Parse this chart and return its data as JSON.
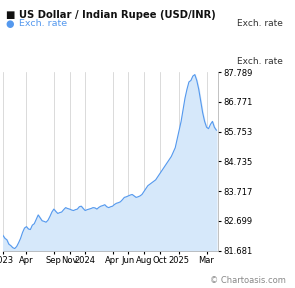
{
  "title": "US Dollar / Indian Rupee (USD/INR)",
  "legend_label": "Exch. rate",
  "legend_color": "#5599ee",
  "ylabel": "Exch. rate",
  "watermark": "© Chartoasis.com",
  "yticks": [
    81.681,
    82.699,
    83.717,
    84.735,
    85.753,
    86.771,
    87.789
  ],
  "xtick_labels": [
    "2023",
    "Apr",
    "Sep",
    "Nov",
    "2024",
    "Apr",
    "Jun",
    "Aug",
    "Oct",
    "2025",
    "Mar"
  ],
  "xtick_positions": [
    0,
    6,
    13,
    17,
    21,
    28,
    32,
    36,
    40,
    45,
    52
  ],
  "ylim": [
    81.681,
    87.789
  ],
  "xlim": [
    0,
    55
  ],
  "line_color": "#5599ee",
  "fill_color": "#d6e8fa",
  "background_color": "#ffffff",
  "plot_bg_color": "#ffffff",
  "grid_color": "#cccccc",
  "x_data": [
    0,
    0.5,
    1,
    1.5,
    2,
    2.5,
    3,
    3.5,
    4,
    4.5,
    5,
    5.5,
    6,
    6.5,
    7,
    7.5,
    8,
    8.5,
    9,
    9.5,
    10,
    10.5,
    11,
    11.5,
    12,
    12.5,
    13,
    13.5,
    14,
    14.5,
    15,
    15.5,
    16,
    16.5,
    17,
    17.5,
    18,
    18.5,
    19,
    19.5,
    20,
    20.5,
    21,
    21.5,
    22,
    22.5,
    23,
    23.5,
    24,
    24.5,
    25,
    25.5,
    26,
    26.5,
    27,
    27.5,
    28,
    28.5,
    29,
    29.5,
    30,
    30.5,
    31,
    31.5,
    32,
    32.5,
    33,
    33.5,
    34,
    34.5,
    35,
    35.5,
    36,
    36.5,
    37,
    37.5,
    38,
    38.5,
    39,
    39.5,
    40,
    40.5,
    41,
    41.5,
    42,
    42.5,
    43,
    43.5,
    44,
    44.5,
    45,
    45.5,
    46,
    46.5,
    47,
    47.5,
    48,
    48.5,
    49,
    49.5,
    50,
    50.5,
    51,
    51.5,
    52,
    52.5,
    53,
    53.5,
    54,
    54.5
  ],
  "y_data": [
    82.2,
    82.1,
    82.05,
    81.9,
    81.85,
    81.78,
    81.75,
    81.82,
    81.95,
    82.1,
    82.3,
    82.45,
    82.5,
    82.42,
    82.4,
    82.55,
    82.6,
    82.75,
    82.9,
    82.8,
    82.7,
    82.68,
    82.65,
    82.72,
    82.85,
    83.0,
    83.1,
    83.02,
    82.95,
    82.98,
    83.0,
    83.08,
    83.15,
    83.12,
    83.1,
    83.07,
    83.05,
    83.08,
    83.1,
    83.18,
    83.2,
    83.12,
    83.05,
    83.08,
    83.1,
    83.12,
    83.15,
    83.14,
    83.1,
    83.16,
    83.2,
    83.22,
    83.25,
    83.18,
    83.15,
    83.18,
    83.2,
    83.26,
    83.3,
    83.32,
    83.35,
    83.42,
    83.5,
    83.52,
    83.55,
    83.58,
    83.6,
    83.55,
    83.5,
    83.52,
    83.55,
    83.6,
    83.7,
    83.8,
    83.9,
    83.95,
    84.0,
    84.05,
    84.1,
    84.2,
    84.3,
    84.4,
    84.5,
    84.6,
    84.7,
    84.8,
    84.9,
    85.05,
    85.2,
    85.5,
    85.8,
    86.1,
    86.5,
    86.9,
    87.2,
    87.45,
    87.5,
    87.65,
    87.7,
    87.5,
    87.2,
    86.8,
    86.4,
    86.1,
    85.9,
    85.85,
    86.0,
    86.1,
    85.9,
    85.8
  ]
}
